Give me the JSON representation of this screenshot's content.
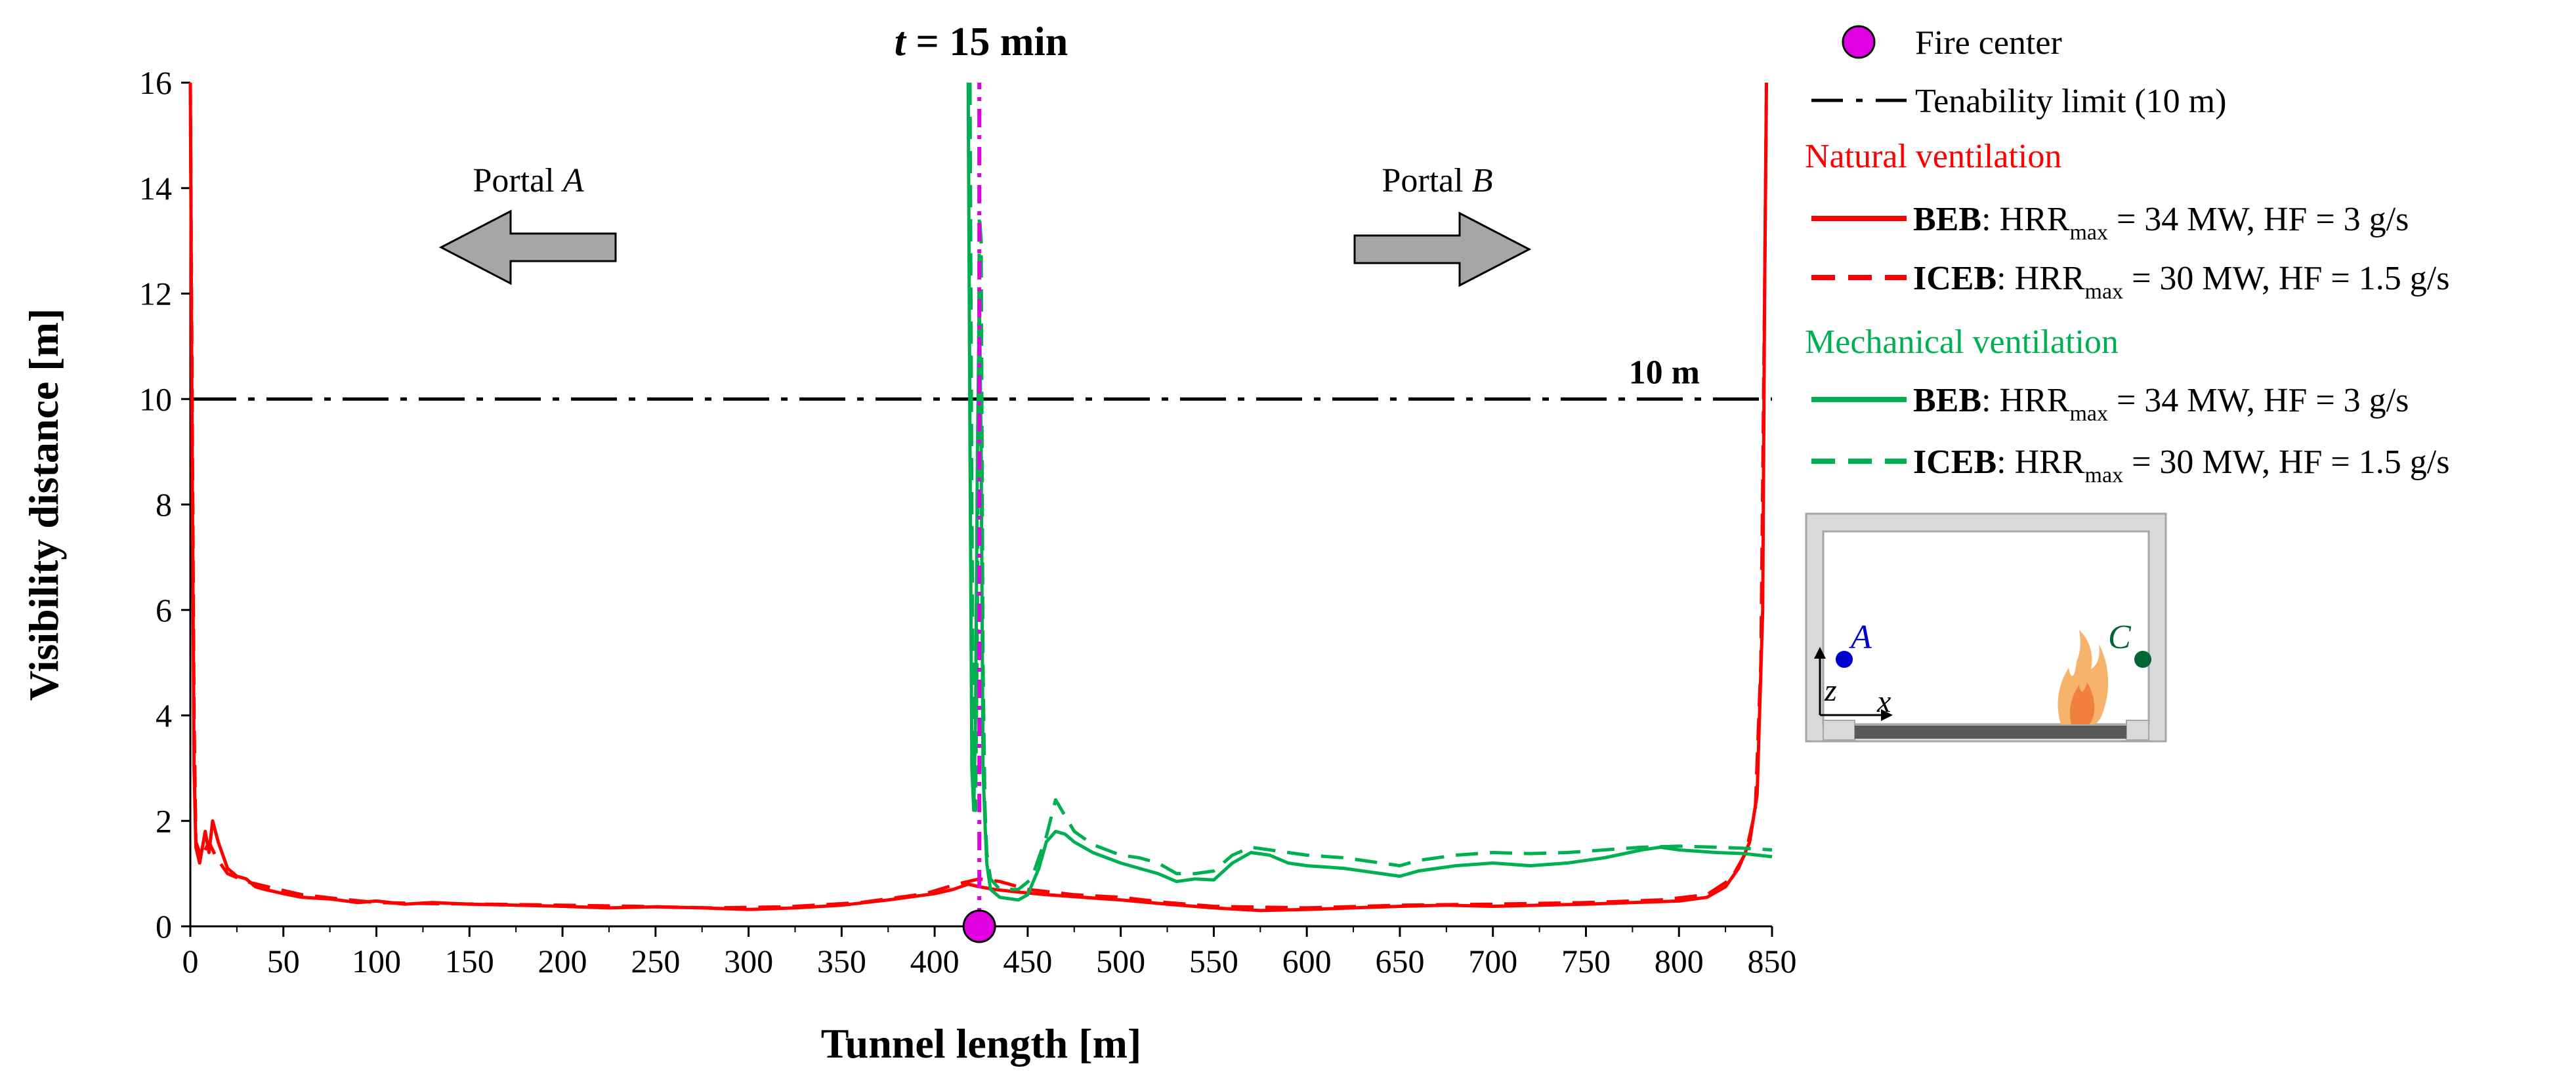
{
  "chart_data": {
    "type": "line",
    "title_italic": "t",
    "title_rest": " = 15 min",
    "xlabel": "Tunnel length [m]",
    "ylabel": "Visibility distance [m]",
    "xlim": [
      0,
      850
    ],
    "ylim": [
      0,
      16
    ],
    "xticks": [
      0,
      50,
      100,
      150,
      200,
      250,
      300,
      350,
      400,
      450,
      500,
      550,
      600,
      650,
      700,
      750,
      800,
      850
    ],
    "yticks": [
      0,
      2,
      4,
      6,
      8,
      10,
      12,
      14,
      16
    ],
    "tenability_limit": 10,
    "tenability_label": "10 m",
    "fire_center_x": 424,
    "portal_a": {
      "text": "Portal ",
      "italic": "A",
      "direction": "left"
    },
    "portal_b": {
      "text": "Portal ",
      "italic": "B",
      "direction": "right"
    },
    "series": [
      {
        "name": "BEB natural",
        "color": "#ff0000",
        "dash": "solid",
        "points": [
          [
            0,
            16
          ],
          [
            1,
            9
          ],
          [
            2,
            3
          ],
          [
            3,
            1.5
          ],
          [
            5,
            1.2
          ],
          [
            8,
            1.8
          ],
          [
            10,
            1.4
          ],
          [
            12,
            2.0
          ],
          [
            15,
            1.6
          ],
          [
            18,
            1.3
          ],
          [
            20,
            1.1
          ],
          [
            25,
            0.95
          ],
          [
            30,
            0.9
          ],
          [
            35,
            0.75
          ],
          [
            40,
            0.7
          ],
          [
            50,
            0.62
          ],
          [
            60,
            0.55
          ],
          [
            75,
            0.52
          ],
          [
            90,
            0.45
          ],
          [
            100,
            0.48
          ],
          [
            115,
            0.42
          ],
          [
            130,
            0.45
          ],
          [
            150,
            0.42
          ],
          [
            175,
            0.4
          ],
          [
            200,
            0.38
          ],
          [
            225,
            0.35
          ],
          [
            250,
            0.37
          ],
          [
            275,
            0.35
          ],
          [
            300,
            0.32
          ],
          [
            325,
            0.35
          ],
          [
            350,
            0.4
          ],
          [
            375,
            0.5
          ],
          [
            400,
            0.62
          ],
          [
            410,
            0.7
          ],
          [
            418,
            0.8
          ],
          [
            424,
            0.75
          ],
          [
            432,
            0.7
          ],
          [
            445,
            0.65
          ],
          [
            460,
            0.6
          ],
          [
            480,
            0.55
          ],
          [
            500,
            0.5
          ],
          [
            525,
            0.42
          ],
          [
            550,
            0.35
          ],
          [
            575,
            0.3
          ],
          [
            600,
            0.32
          ],
          [
            625,
            0.35
          ],
          [
            650,
            0.38
          ],
          [
            675,
            0.4
          ],
          [
            700,
            0.38
          ],
          [
            725,
            0.4
          ],
          [
            750,
            0.42
          ],
          [
            775,
            0.45
          ],
          [
            800,
            0.48
          ],
          [
            815,
            0.55
          ],
          [
            825,
            0.75
          ],
          [
            832,
            1.1
          ],
          [
            838,
            1.6
          ],
          [
            842,
            2.5
          ],
          [
            845,
            6
          ],
          [
            846,
            12
          ],
          [
            847,
            16
          ]
        ]
      },
      {
        "name": "ICEB natural",
        "color": "#ff0000",
        "dash": "dashed",
        "points": [
          [
            0,
            16
          ],
          [
            1,
            10
          ],
          [
            2,
            4
          ],
          [
            3,
            1.6
          ],
          [
            6,
            1.3
          ],
          [
            10,
            1.6
          ],
          [
            14,
            1.3
          ],
          [
            20,
            1.0
          ],
          [
            30,
            0.85
          ],
          [
            45,
            0.72
          ],
          [
            60,
            0.6
          ],
          [
            80,
            0.52
          ],
          [
            100,
            0.45
          ],
          [
            130,
            0.43
          ],
          [
            160,
            0.42
          ],
          [
            200,
            0.4
          ],
          [
            240,
            0.38
          ],
          [
            280,
            0.35
          ],
          [
            320,
            0.37
          ],
          [
            360,
            0.45
          ],
          [
            395,
            0.62
          ],
          [
            412,
            0.8
          ],
          [
            424,
            0.9
          ],
          [
            435,
            0.85
          ],
          [
            450,
            0.7
          ],
          [
            475,
            0.6
          ],
          [
            500,
            0.55
          ],
          [
            525,
            0.45
          ],
          [
            550,
            0.38
          ],
          [
            600,
            0.35
          ],
          [
            650,
            0.4
          ],
          [
            700,
            0.42
          ],
          [
            750,
            0.45
          ],
          [
            790,
            0.5
          ],
          [
            815,
            0.6
          ],
          [
            828,
            0.9
          ],
          [
            836,
            1.4
          ],
          [
            841,
            2.2
          ],
          [
            844,
            5
          ],
          [
            846,
            12
          ],
          [
            847,
            16
          ]
        ]
      },
      {
        "name": "BEB mechanical",
        "color": "#00b050",
        "dash": "solid",
        "points": [
          [
            418,
            16
          ],
          [
            419,
            9
          ],
          [
            420,
            3
          ],
          [
            421,
            2.2
          ],
          [
            422,
            4
          ],
          [
            423,
            9
          ],
          [
            424,
            12
          ],
          [
            425,
            9
          ],
          [
            426,
            3
          ],
          [
            427,
            2
          ],
          [
            428,
            1.2
          ],
          [
            430,
            0.7
          ],
          [
            435,
            0.55
          ],
          [
            445,
            0.5
          ],
          [
            450,
            0.6
          ],
          [
            456,
            1.1
          ],
          [
            460,
            1.6
          ],
          [
            465,
            1.8
          ],
          [
            470,
            1.75
          ],
          [
            475,
            1.6
          ],
          [
            485,
            1.4
          ],
          [
            500,
            1.2
          ],
          [
            510,
            1.1
          ],
          [
            520,
            1.0
          ],
          [
            530,
            0.85
          ],
          [
            540,
            0.9
          ],
          [
            550,
            0.88
          ],
          [
            560,
            1.2
          ],
          [
            570,
            1.4
          ],
          [
            580,
            1.35
          ],
          [
            590,
            1.2
          ],
          [
            600,
            1.15
          ],
          [
            620,
            1.1
          ],
          [
            640,
            1.0
          ],
          [
            650,
            0.95
          ],
          [
            660,
            1.05
          ],
          [
            680,
            1.15
          ],
          [
            700,
            1.2
          ],
          [
            720,
            1.15
          ],
          [
            740,
            1.2
          ],
          [
            760,
            1.3
          ],
          [
            780,
            1.45
          ],
          [
            790,
            1.5
          ],
          [
            800,
            1.45
          ],
          [
            820,
            1.4
          ],
          [
            835,
            1.38
          ],
          [
            850,
            1.32
          ]
        ]
      },
      {
        "name": "ICEB mechanical",
        "color": "#00b050",
        "dash": "dashed",
        "points": [
          [
            419,
            16
          ],
          [
            420,
            8
          ],
          [
            421,
            2.5
          ],
          [
            422,
            2.2
          ],
          [
            423,
            6
          ],
          [
            424,
            13.5
          ],
          [
            425,
            13
          ],
          [
            426,
            5
          ],
          [
            427,
            2.3
          ],
          [
            428,
            1.4
          ],
          [
            430,
            0.9
          ],
          [
            435,
            0.7
          ],
          [
            445,
            0.7
          ],
          [
            452,
            0.9
          ],
          [
            456,
            1.3
          ],
          [
            460,
            1.7
          ],
          [
            465,
            2.4
          ],
          [
            470,
            2.1
          ],
          [
            475,
            1.8
          ],
          [
            485,
            1.55
          ],
          [
            500,
            1.35
          ],
          [
            510,
            1.3
          ],
          [
            520,
            1.2
          ],
          [
            530,
            1.0
          ],
          [
            540,
            1.0
          ],
          [
            550,
            1.05
          ],
          [
            560,
            1.35
          ],
          [
            570,
            1.5
          ],
          [
            580,
            1.45
          ],
          [
            600,
            1.35
          ],
          [
            620,
            1.3
          ],
          [
            640,
            1.2
          ],
          [
            650,
            1.15
          ],
          [
            660,
            1.25
          ],
          [
            680,
            1.35
          ],
          [
            700,
            1.4
          ],
          [
            720,
            1.38
          ],
          [
            740,
            1.4
          ],
          [
            760,
            1.45
          ],
          [
            780,
            1.5
          ],
          [
            800,
            1.52
          ],
          [
            820,
            1.5
          ],
          [
            835,
            1.48
          ],
          [
            850,
            1.45
          ]
        ]
      },
      {
        "name": "Fire center marker line",
        "color": "#e100e1",
        "dash": "dashdot",
        "points": [
          [
            424,
            0
          ],
          [
            424,
            16
          ]
        ]
      }
    ],
    "legend": {
      "fire_center": "Fire center",
      "tenability": "Tenability limit (10 m)",
      "natural_heading": "Natural ventilation",
      "mechanical_heading": "Mechanical ventilation",
      "entries": [
        {
          "bold": "BEB",
          "text1": ": HRR",
          "sub": "max",
          "text2": " = 34 MW, HF = 3 g/s"
        },
        {
          "bold": "ICEB",
          "text1": ": HRR",
          "sub": "max",
          "text2": " = 30 MW, HF = 1.5 g/s"
        },
        {
          "bold": "BEB",
          "text1": ": HRR",
          "sub": "max",
          "text2": " = 34 MW, HF = 3 g/s"
        },
        {
          "bold": "ICEB",
          "text1": ": HRR",
          "sub": "max",
          "text2": " = 30 MW, HF = 1.5 g/s"
        }
      ]
    },
    "inset": {
      "point_a": "A",
      "point_c": "C",
      "axis_z": "z",
      "axis_x": "x"
    },
    "colors": {
      "natural": "#ff0000",
      "mechanical": "#00b050",
      "fire": "#e100e1",
      "point_a": "#0000cc",
      "point_c": "#006633",
      "arrow": "#a6a6a6"
    }
  }
}
